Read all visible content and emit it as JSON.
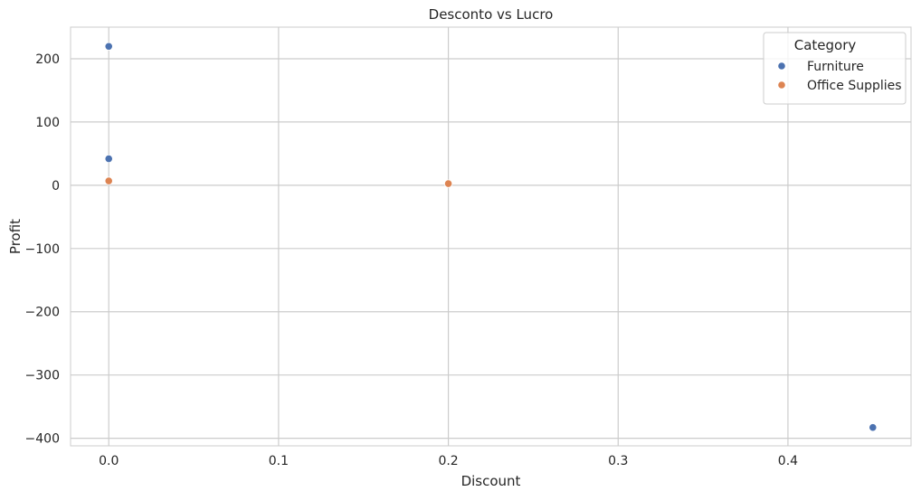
{
  "chart_data": {
    "type": "scatter",
    "title": "Desconto vs Lucro",
    "xlabel": "Discount",
    "ylabel": "Profit",
    "xlim": [
      -0.0225,
      0.4725
    ],
    "ylim": [
      -412,
      250
    ],
    "xticks": [
      0.0,
      0.1,
      0.2,
      0.3,
      0.4
    ],
    "xtick_labels": [
      "0.0",
      "0.1",
      "0.2",
      "0.3",
      "0.4"
    ],
    "yticks": [
      200,
      100,
      0,
      -100,
      -200,
      -300,
      -400
    ],
    "ytick_labels": [
      "200",
      "100",
      "0",
      "−100",
      "−200",
      "−300",
      "−400"
    ],
    "grid": true,
    "legend": {
      "title": "Category",
      "placement": "top-right"
    },
    "series": [
      {
        "name": "Furniture",
        "color": "#4c72b0",
        "points": [
          {
            "x": 0.0,
            "y": 219.6
          },
          {
            "x": 0.0,
            "y": 41.9
          },
          {
            "x": 0.45,
            "y": -383.0
          }
        ]
      },
      {
        "name": "Office Supplies",
        "color": "#dd8452",
        "points": [
          {
            "x": 0.0,
            "y": 6.9
          },
          {
            "x": 0.2,
            "y": 2.5
          }
        ]
      }
    ]
  }
}
